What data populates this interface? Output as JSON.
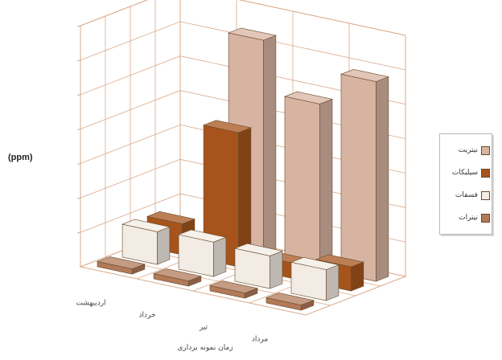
{
  "chart_data": {
    "type": "bar",
    "categories": [
      "اردیبهشت",
      "خرداد",
      "تیر",
      "مرداد"
    ],
    "series": [
      {
        "name": "نیترات",
        "values": [
          0.3,
          0.3,
          0.3,
          0.3
        ]
      },
      {
        "name": "فسفات",
        "values": [
          1.9,
          2.0,
          1.9,
          1.8
        ]
      },
      {
        "name": "سیلیکات",
        "values": [
          1.8,
          7.8,
          0.9,
          1.4
        ]
      },
      {
        "name": "نیتریت",
        "values": [
          0.0,
          12.6,
          9.6,
          11.6
        ]
      }
    ],
    "colors": {
      "نیتریت": "#d7b3a2",
      "سیلیکات": "#a6541c",
      "فسفات": "#f2ece4",
      "نیترات": "#b27a59"
    },
    "ylabel": "(ppm)",
    "xlabel": "زمان نمونه برداری",
    "ylim": [
      0,
      14
    ],
    "grid": true,
    "legend_position": "right",
    "legend": [
      "نیتریت",
      "سیلیکات",
      "فسفات",
      "نیترات"
    ],
    "projection": "3d"
  }
}
